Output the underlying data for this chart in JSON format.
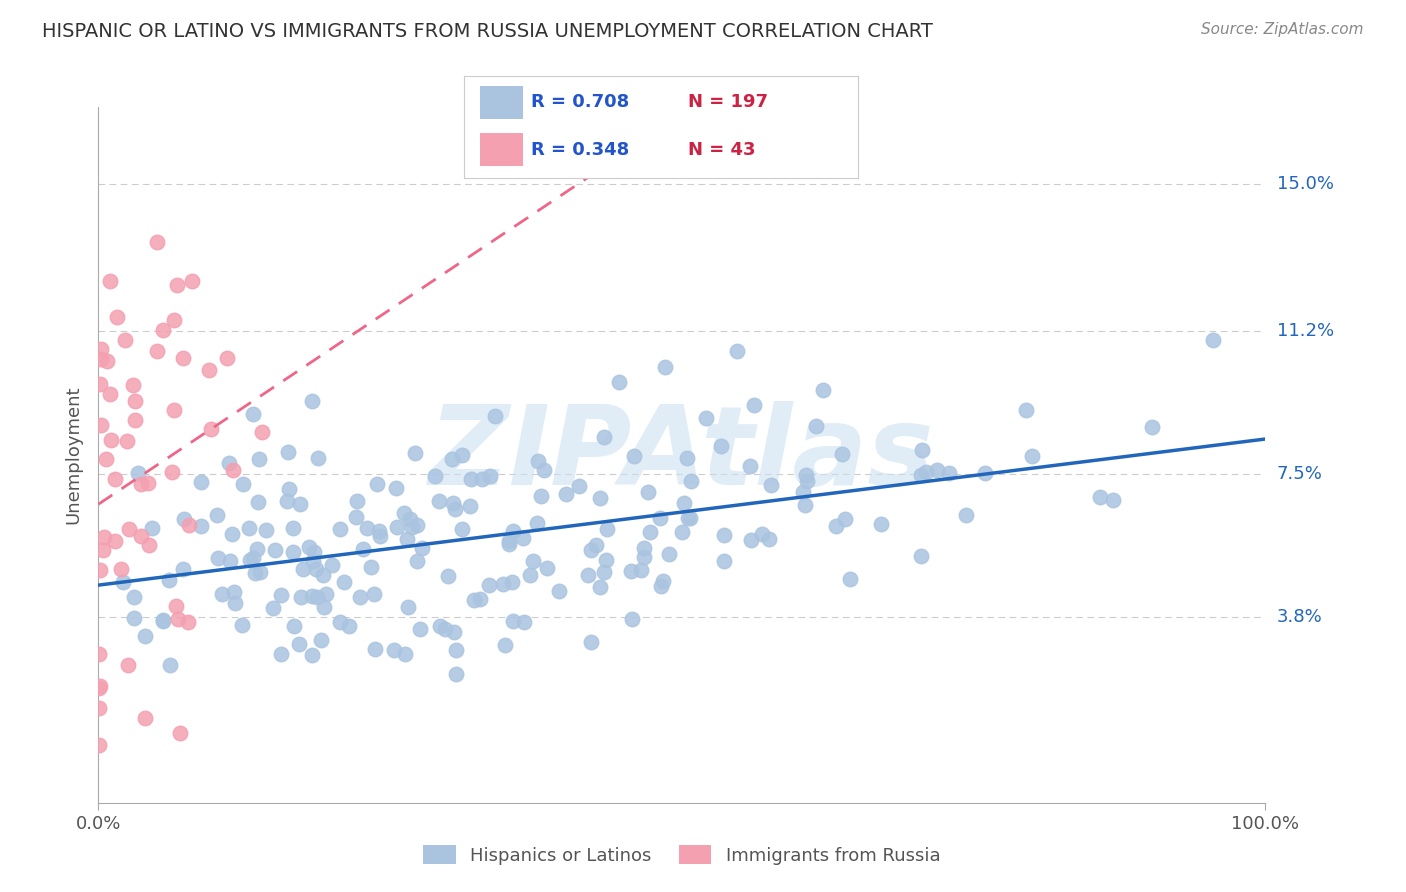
{
  "title": "HISPANIC OR LATINO VS IMMIGRANTS FROM RUSSIA UNEMPLOYMENT CORRELATION CHART",
  "source": "Source: ZipAtlas.com",
  "ylabel": "Unemployment",
  "blue_label": "Hispanics or Latinos",
  "pink_label": "Immigrants from Russia",
  "blue_R": 0.708,
  "blue_N": 197,
  "pink_R": 0.348,
  "pink_N": 43,
  "blue_color": "#aac4e0",
  "blue_line_color": "#2266bb",
  "pink_color": "#f4a0b0",
  "pink_line_color": "#ee6688",
  "watermark": "ZIPAtlas",
  "watermark_color": "#cce0f0",
  "yticks": [
    3.8,
    7.5,
    11.2,
    15.0
  ],
  "ytick_labels": [
    "3.8%",
    "7.5%",
    "11.2%",
    "15.0%"
  ],
  "xlim": [
    0,
    100
  ],
  "ylim": [
    -1,
    17
  ],
  "background_color": "#ffffff",
  "grid_color": "#cccccc",
  "title_color": "#333333",
  "legend_R_color": "#2255cc",
  "legend_N_color": "#cc2244",
  "source_color": "#888888"
}
